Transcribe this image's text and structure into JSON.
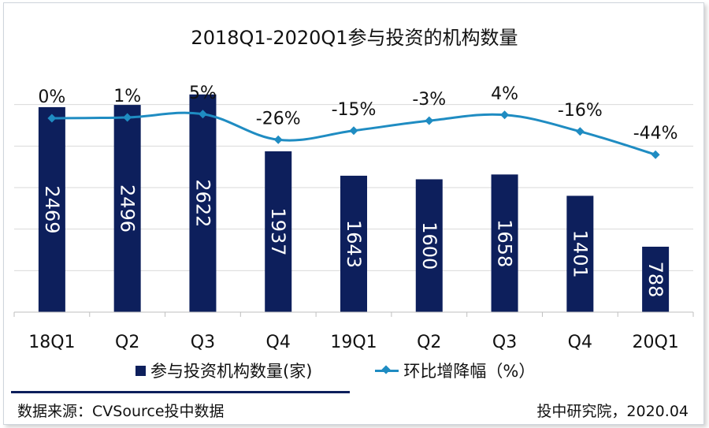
{
  "chart_data": {
    "type": "bar",
    "title": "2018Q1-2020Q1参与投资的机构数量",
    "categories": [
      "18Q1",
      "Q2",
      "Q3",
      "Q4",
      "19Q1",
      "Q2",
      "Q3",
      "Q4",
      "20Q1"
    ],
    "series": [
      {
        "name": "参与投资机构数量(家)",
        "type": "bar",
        "values": [
          2469,
          2496,
          2622,
          1937,
          1643,
          1600,
          1658,
          1401,
          788
        ],
        "labels": [
          "2469",
          "2496",
          "2622",
          "1937",
          "1643",
          "1600",
          "1658",
          "1401",
          "788"
        ],
        "color": "#0d1f5c"
      },
      {
        "name": "环比增降幅（%）",
        "type": "line",
        "values": [
          0,
          1,
          5,
          -26,
          -15,
          -3,
          4,
          -16,
          -44
        ],
        "labels": [
          "0%",
          "1%",
          "5%",
          "-26%",
          "-15%",
          "-3%",
          "4%",
          "-16%",
          "-44%"
        ],
        "color": "#1f8cc2"
      }
    ],
    "ylim": [
      0,
      3000
    ],
    "grid": true,
    "legend_position": "bottom"
  },
  "legend": {
    "bars": "参与投资机构数量(家)",
    "line": "环比增降幅（%）"
  },
  "footer": {
    "source": "数据来源：CVSource投中数据",
    "credit": "投中研究院，2020.04"
  }
}
